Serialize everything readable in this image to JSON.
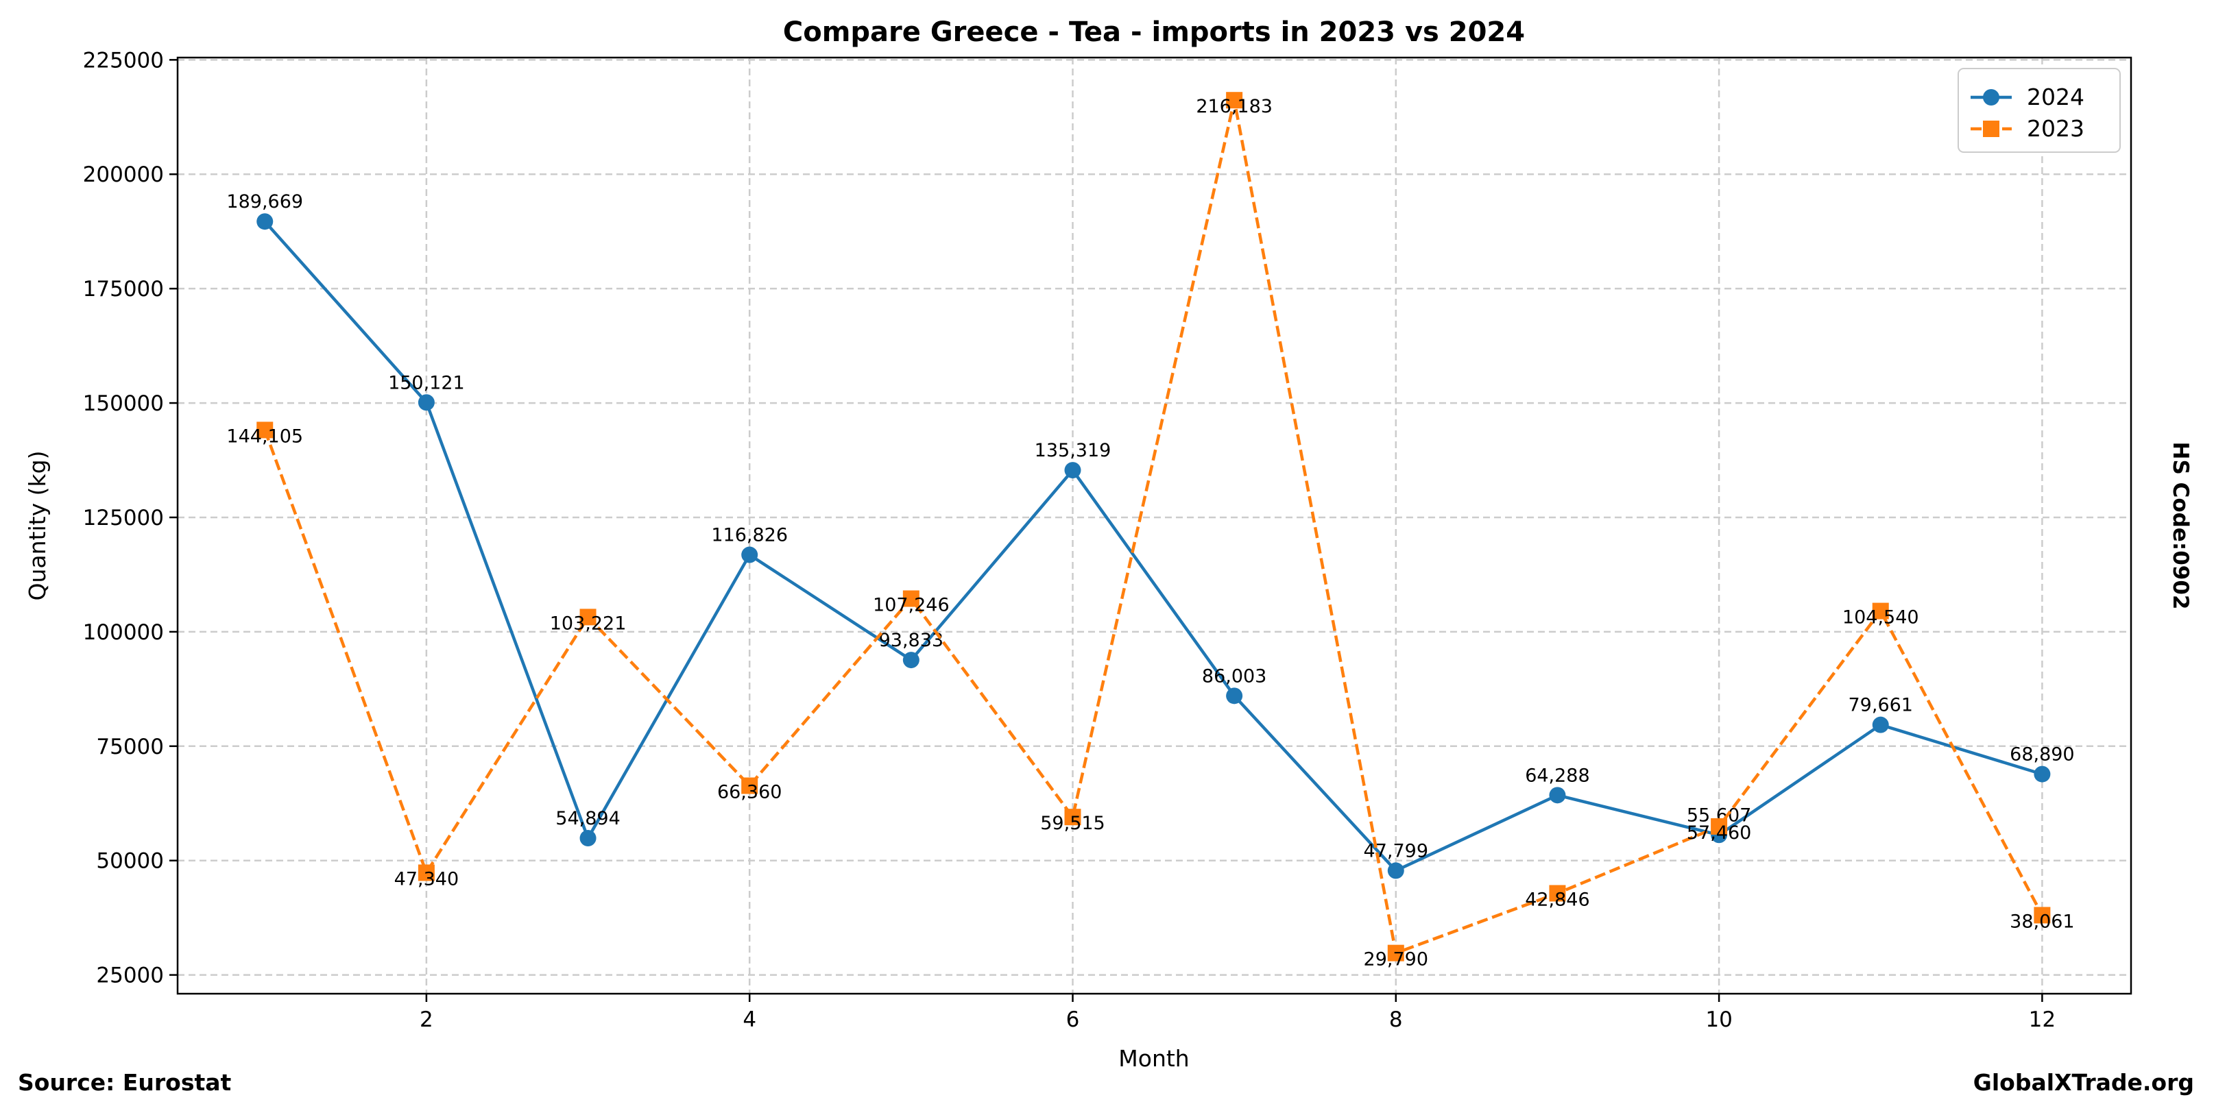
{
  "chart_data": {
    "type": "line",
    "title": "Compare Greece - Tea - imports in 2023 vs 2024",
    "xlabel": "Month",
    "ylabel": "Quantity (kg)",
    "side_label": "HS Code:0902",
    "footer_left": "Source: Eurostat",
    "footer_right": "GlobalXTrade.org",
    "xlim": [
      0.46,
      12.55
    ],
    "ylim": [
      20900,
      225500
    ],
    "xticks": [
      2,
      4,
      6,
      8,
      10,
      12
    ],
    "yticks": [
      25000,
      50000,
      75000,
      100000,
      125000,
      150000,
      175000,
      200000,
      225000
    ],
    "grid": true,
    "legend_position": "top-right",
    "x": [
      1,
      2,
      3,
      4,
      5,
      6,
      7,
      8,
      9,
      10,
      11,
      12
    ],
    "series": [
      {
        "name": "2024",
        "color": "#1f77b4",
        "marker": "circle",
        "dash": "solid",
        "values": [
          189669,
          150121,
          54894,
          116826,
          93833,
          135319,
          86003,
          47799,
          64288,
          55607,
          79661,
          68890
        ],
        "labels": [
          "189,669",
          "150,121",
          "54,894",
          "116,826",
          "93,833",
          "135,319",
          "86,003",
          "47,799",
          "64,288",
          "55,607",
          "79,661",
          "68,890"
        ]
      },
      {
        "name": "2023",
        "color": "#ff7f0e",
        "marker": "square",
        "dash": "dashed",
        "values": [
          144105,
          47340,
          103221,
          66360,
          107246,
          59515,
          216183,
          29790,
          42846,
          57460,
          104540,
          38061
        ],
        "labels": [
          "144,105",
          "47,340",
          "103,221",
          "66,360",
          "107,246",
          "59,515",
          "216,183",
          "29,790",
          "42,846",
          "57,460",
          "104,540",
          "38,061"
        ]
      }
    ]
  }
}
